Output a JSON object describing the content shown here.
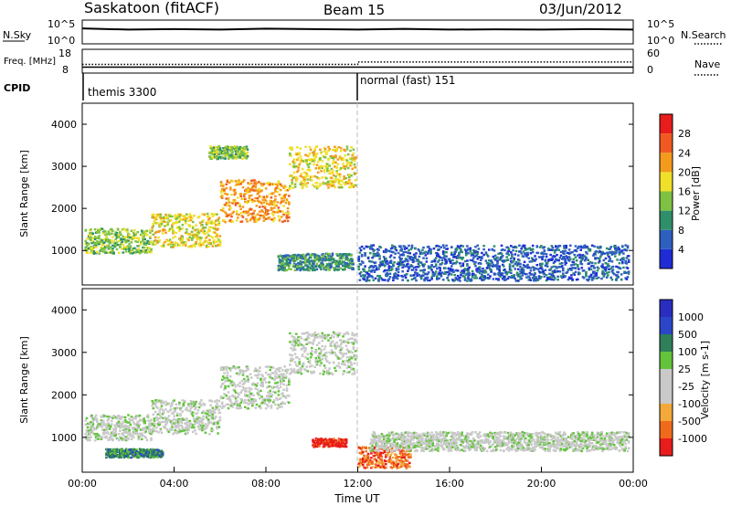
{
  "header": {
    "station": "Saskatoon (fitACF)",
    "beam": "Beam 15",
    "date": "03/Jun/2012"
  },
  "colors": {
    "power": [
      "#1f2cd6",
      "#2d5fbf",
      "#2f8f6a",
      "#7fc243",
      "#f0e02a",
      "#f49a1c",
      "#f05a20",
      "#e81c1c"
    ],
    "velocity": [
      "#e81c1c",
      "#f06a1c",
      "#f3a83a",
      "#c9c9c9",
      "#c9c9c9",
      "#63c43c",
      "#2e7f5a",
      "#2b47c8",
      "#2a2ec0"
    ],
    "trace": "#000000"
  },
  "chart_data": [
    {
      "type": "line",
      "id": "nsky-nsearch",
      "title": "",
      "ylabel_left": "N.Sky",
      "ylabel_right": "N.Search",
      "left_ticks": [
        "10^5",
        "10^0"
      ],
      "right_ticks": [
        "10^5",
        "10^0"
      ],
      "series": [
        {
          "name": "N.Sky",
          "style": "solid",
          "x": [
            "00:00",
            "02:00",
            "04:00",
            "06:00",
            "08:00",
            "10:00",
            "12:00",
            "14:00",
            "16:00",
            "18:00",
            "20:00",
            "22:00",
            "24:00"
          ],
          "y": [
            0.65,
            0.6,
            0.62,
            0.6,
            0.64,
            0.62,
            0.6,
            0.63,
            0.6,
            0.61,
            0.6,
            0.62,
            0.6
          ]
        },
        {
          "name": "N.Search",
          "style": "dotted",
          "x": [],
          "y": []
        }
      ]
    },
    {
      "type": "line",
      "id": "freq-nave",
      "ylabel_left": "Freq. [MHz]",
      "ylabel_right": "Nave",
      "left_ticks": [
        18,
        8
      ],
      "right_ticks": [
        60,
        0
      ],
      "series": [
        {
          "name": "Freq",
          "style": "solid",
          "x": [
            "00:00",
            "24:00"
          ],
          "y": [
            10.5,
            10.5
          ]
        },
        {
          "name": "Nave",
          "style": "dotted",
          "x": [
            "00:00",
            "12:00",
            "12:00",
            "24:00"
          ],
          "y": [
            22,
            22,
            28,
            28
          ]
        }
      ]
    },
    {
      "type": "table",
      "id": "cpid",
      "label": "CPID",
      "segments": [
        {
          "start": "00:00",
          "end": "12:00",
          "text": "themis 3300"
        },
        {
          "start": "12:00",
          "end": "24:00",
          "text": "normal (fast) 151"
        }
      ]
    },
    {
      "type": "heatmap",
      "id": "power",
      "ylabel": "Slant Range [km]",
      "yticks": [
        1000,
        2000,
        3000,
        4000
      ],
      "ylim": [
        180,
        4500
      ],
      "xlim": [
        "00:00",
        "24:00"
      ],
      "colorbar_label": "Power [dB]",
      "colorbar_ticks": [
        4,
        8,
        12,
        16,
        20,
        24,
        28
      ],
      "bands": [
        {
          "t0": 0.1,
          "t1": 3.0,
          "r0": 950,
          "r1": 1550,
          "level": 3
        },
        {
          "t0": 3.0,
          "t1": 6.0,
          "r0": 1100,
          "r1": 1900,
          "level": 4
        },
        {
          "t0": 6.0,
          "t1": 9.0,
          "r0": 1700,
          "r1": 2700,
          "level": 5
        },
        {
          "t0": 9.0,
          "t1": 11.9,
          "r0": 2500,
          "r1": 3500,
          "level": 4
        },
        {
          "t0": 5.5,
          "t1": 7.2,
          "r0": 3200,
          "r1": 3500,
          "level": 3
        },
        {
          "t0": 12.0,
          "t1": 23.8,
          "r0": 300,
          "r1": 1150,
          "level": 1
        },
        {
          "t0": 8.5,
          "t1": 11.8,
          "r0": 550,
          "r1": 950,
          "level": 2
        }
      ]
    },
    {
      "type": "heatmap",
      "id": "velocity",
      "ylabel": "Slant Range [km]",
      "yticks": [
        1000,
        2000,
        3000,
        4000
      ],
      "ylim": [
        180,
        4500
      ],
      "xlim": [
        "00:00",
        "24:00"
      ],
      "xticks": [
        "00:00",
        "04:00",
        "08:00",
        "12:00",
        "16:00",
        "20:00",
        "00:00"
      ],
      "xlabel": "Time UT",
      "colorbar_label": "Velocity [m s-1]",
      "colorbar_ticks": [
        -1000,
        -500,
        -100,
        -25,
        25,
        100,
        500,
        1000
      ],
      "bands": [
        {
          "t0": 0.1,
          "t1": 3.0,
          "r0": 950,
          "r1": 1550,
          "level": 4
        },
        {
          "t0": 3.0,
          "t1": 6.0,
          "r0": 1100,
          "r1": 1900,
          "level": 4
        },
        {
          "t0": 6.0,
          "t1": 9.0,
          "r0": 1700,
          "r1": 2700,
          "level": 4
        },
        {
          "t0": 9.0,
          "t1": 11.9,
          "r0": 2500,
          "r1": 3500,
          "level": 4
        },
        {
          "t0": 12.0,
          "t1": 14.3,
          "r0": 300,
          "r1": 800,
          "level": 1
        },
        {
          "t0": 12.5,
          "t1": 23.8,
          "r0": 700,
          "r1": 1150,
          "level": 4
        },
        {
          "t0": 10.0,
          "t1": 11.5,
          "r0": 800,
          "r1": 1000,
          "level": 0
        },
        {
          "t0": 1.0,
          "t1": 3.5,
          "r0": 550,
          "r1": 750,
          "level": 6
        }
      ]
    }
  ]
}
